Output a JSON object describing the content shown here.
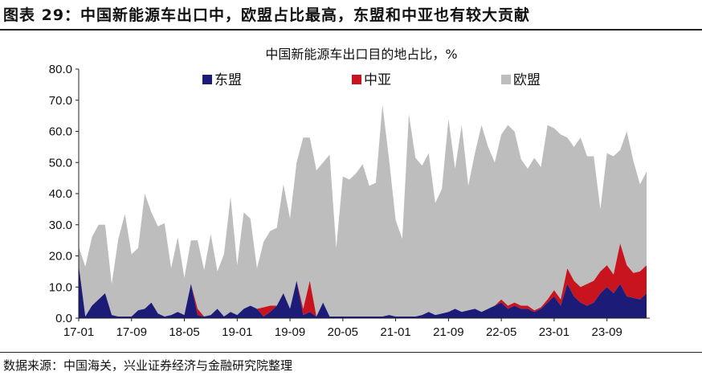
{
  "figure_title": "图表 29：中国新能源车出口中，欧盟占比最高，东盟和中亚也有较大贡献",
  "source": "数据来源：中国海关，兴业证券经济与金融研究院整理",
  "chart_data": {
    "type": "area",
    "stacked": true,
    "title": "中国新能源车出口目的地占比，%",
    "xlabel": "",
    "ylabel": "",
    "ylim": [
      0,
      80
    ],
    "yticks": [
      "0.0",
      "10.0",
      "20.0",
      "30.0",
      "40.0",
      "50.0",
      "60.0",
      "70.0",
      "80.0"
    ],
    "xtick_labels": [
      {
        "index": 0,
        "label": "17-01"
      },
      {
        "index": 8,
        "label": "17-09"
      },
      {
        "index": 16,
        "label": "18-05"
      },
      {
        "index": 24,
        "label": "19-01"
      },
      {
        "index": 32,
        "label": "19-09"
      },
      {
        "index": 40,
        "label": "20-05"
      },
      {
        "index": 48,
        "label": "21-01"
      },
      {
        "index": 56,
        "label": "21-09"
      },
      {
        "index": 64,
        "label": "22-05"
      },
      {
        "index": 72,
        "label": "23-01"
      },
      {
        "index": 80,
        "label": "23-09"
      }
    ],
    "grid": false,
    "legend_position": "top",
    "colors": {
      "东盟": "#1c1c78",
      "中亚": "#c8141e",
      "欧盟": "#bdbdbd"
    },
    "series": [
      {
        "name": "东盟",
        "values": [
          17,
          0.5,
          4,
          6,
          8,
          1,
          0.5,
          0.5,
          0.5,
          2.5,
          3,
          5,
          1.5,
          0.5,
          1,
          2,
          1,
          11,
          1,
          0.5,
          1,
          3,
          0.5,
          2,
          1,
          3,
          4,
          3,
          0.5,
          2,
          4,
          8,
          3,
          12,
          1,
          2,
          0.5,
          5,
          0.5,
          0.5,
          0.5,
          0.5,
          0.5,
          0.5,
          0.5,
          0.5,
          0.5,
          1,
          0.5,
          0.5,
          0.5,
          0.5,
          1,
          2,
          1,
          1.5,
          2,
          3,
          2,
          2.5,
          3,
          2,
          3,
          4,
          5,
          3,
          4,
          3,
          3,
          2,
          3,
          5,
          7,
          4,
          11,
          7,
          5,
          4,
          5,
          8,
          10,
          8,
          11,
          7,
          6.5,
          6,
          8
        ]
      },
      {
        "name": "中亚",
        "values": [
          0,
          0,
          0,
          0,
          0,
          0,
          0,
          0,
          0,
          0,
          0,
          0,
          0,
          0,
          0,
          0,
          0,
          0,
          2,
          0,
          0,
          0,
          0,
          0,
          0,
          0,
          0,
          0,
          3,
          2,
          0,
          0,
          0,
          0,
          2,
          10,
          0,
          0,
          0,
          0,
          0,
          0,
          0,
          0,
          0,
          0,
          0,
          0,
          0,
          0,
          0,
          0,
          0,
          0,
          0,
          0,
          0,
          0,
          0,
          0,
          0,
          0,
          0,
          0,
          1,
          1,
          1,
          1,
          1,
          0.5,
          0.5,
          1,
          2,
          2,
          5,
          5,
          5,
          7,
          7,
          7,
          7,
          6,
          13,
          10,
          8,
          9,
          9
        ]
      },
      {
        "name": "欧盟",
        "values": [
          6,
          16,
          22,
          24,
          22,
          10,
          25,
          33,
          20,
          20,
          37,
          29,
          28,
          30,
          15,
          24,
          12,
          14,
          22,
          15,
          26,
          12,
          20,
          37,
          16,
          31,
          28,
          13,
          21,
          24,
          25,
          35,
          29,
          38,
          55,
          46,
          47,
          45,
          52,
          22,
          45,
          44,
          46,
          49,
          42,
          43,
          68,
          50,
          31,
          25,
          65,
          51,
          48,
          51,
          36,
          40,
          62,
          45,
          60,
          40,
          50,
          60,
          52,
          46,
          53,
          58,
          55,
          47,
          44,
          49,
          45,
          56,
          52,
          53,
          42,
          43,
          48,
          41,
          40,
          20,
          36,
          38,
          30,
          43,
          36,
          28,
          30
        ]
      }
    ]
  }
}
